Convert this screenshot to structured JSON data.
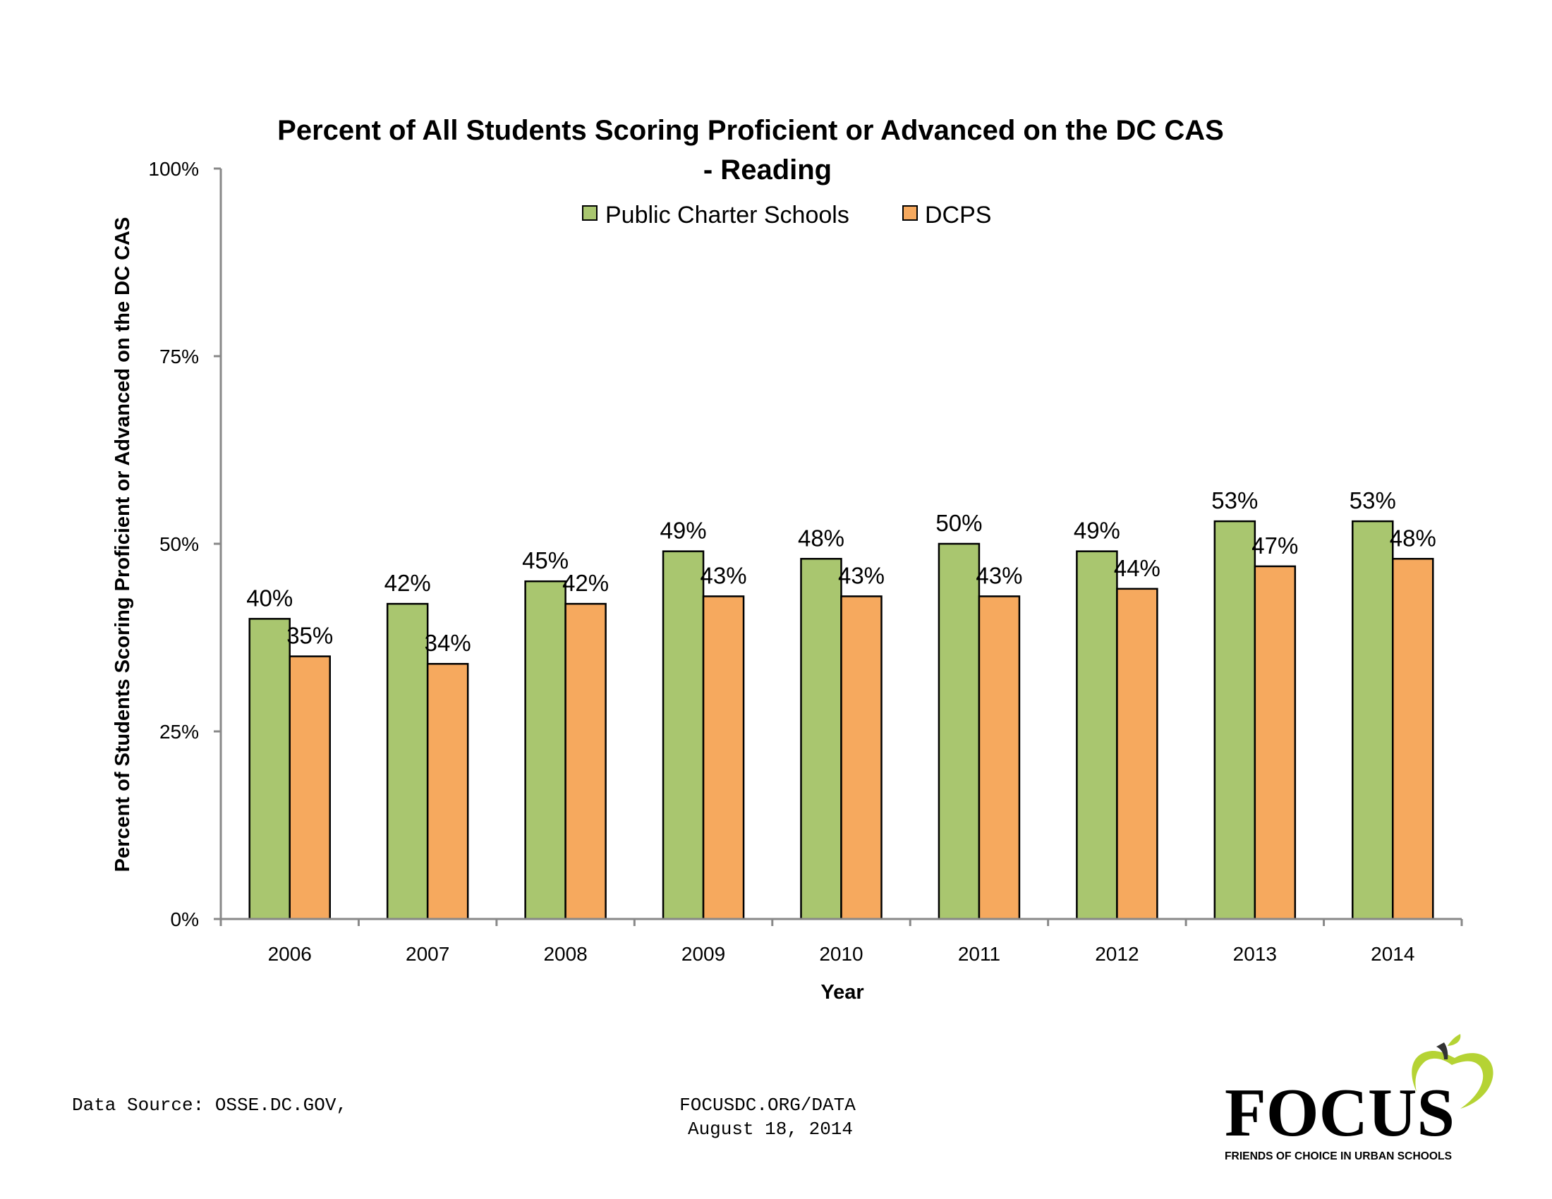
{
  "chart_data": {
    "type": "bar",
    "title_line1": "Percent of All Students Scoring Proficient or Advanced on the DC CAS",
    "title_line2": "- Reading",
    "xlabel": "Year",
    "ylabel": "Percent of Students Scoring Proficient or Advanced on the DC CAS",
    "ylim": [
      0,
      100
    ],
    "yticks": [
      "0%",
      "25%",
      "50%",
      "75%",
      "100%"
    ],
    "ytick_values": [
      0,
      25,
      50,
      75,
      100
    ],
    "grid": false,
    "legend_position": "top-center",
    "categories": [
      "2006",
      "2007",
      "2008",
      "2009",
      "2010",
      "2011",
      "2012",
      "2013",
      "2014"
    ],
    "series": [
      {
        "name": "Public Charter Schools",
        "color": "#A9C66F",
        "values": [
          40,
          42,
          45,
          49,
          48,
          50,
          49,
          53,
          53
        ],
        "labels": [
          "40%",
          "42%",
          "45%",
          "49%",
          "48%",
          "50%",
          "49%",
          "53%",
          "53%"
        ]
      },
      {
        "name": "DCPS",
        "color": "#F6A95E",
        "values": [
          35,
          34,
          42,
          43,
          43,
          43,
          44,
          47,
          48
        ],
        "labels": [
          "35%",
          "34%",
          "42%",
          "43%",
          "43%",
          "43%",
          "44%",
          "47%",
          "48%"
        ]
      }
    ]
  },
  "footer": {
    "source": "Data Source: OSSE.DC.GOV,",
    "site": "FOCUSDC.ORG/DATA",
    "date": "August 18, 2014"
  },
  "logo": {
    "name": "FOCUS",
    "tagline": "FRIENDS OF CHOICE IN URBAN SCHOOLS",
    "color_text": "#333333",
    "color_apple": "#B5D334"
  }
}
